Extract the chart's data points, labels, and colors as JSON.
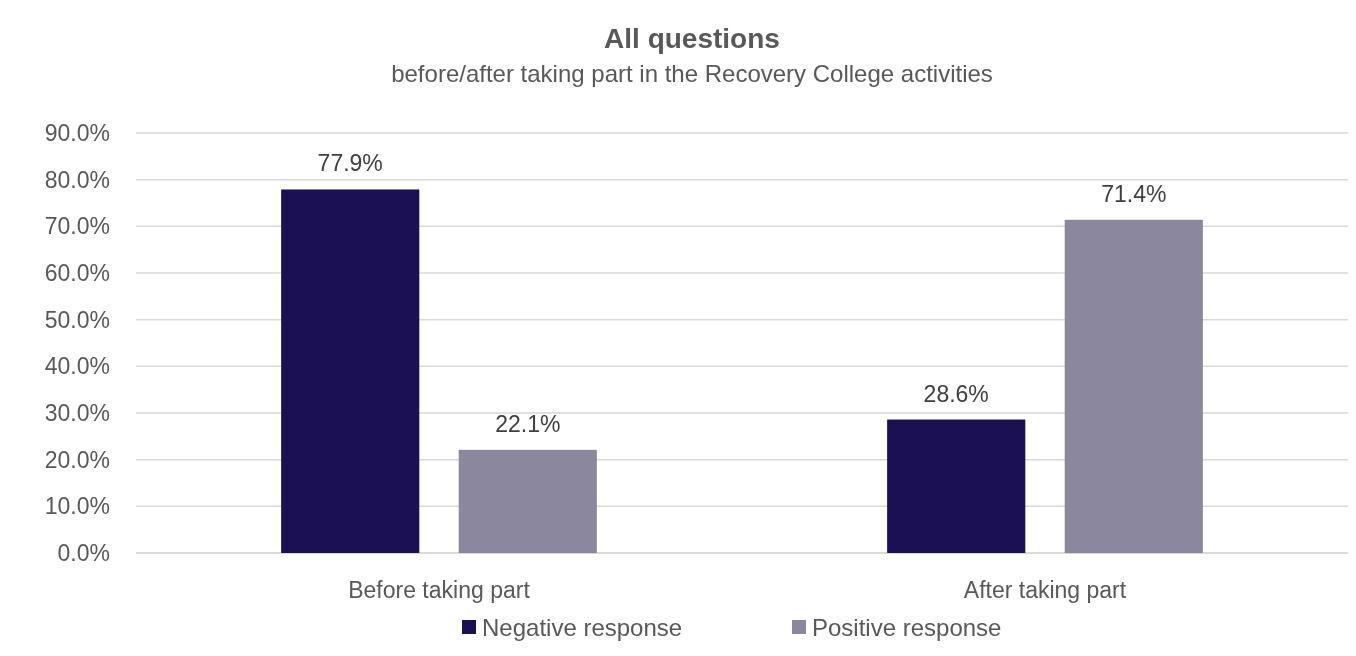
{
  "chart_data": {
    "type": "bar",
    "title": "All questions",
    "subtitle": "before/after taking part in the Recovery College activities",
    "categories": [
      "Before taking part",
      "After taking part"
    ],
    "series": [
      {
        "name": "Negative response",
        "color": "#1a1053",
        "values": [
          77.9,
          28.6
        ],
        "value_labels": [
          "77.9%",
          "28.6%"
        ]
      },
      {
        "name": "Positive response",
        "color": "#8a879e",
        "values": [
          22.1,
          71.4
        ],
        "value_labels": [
          "22.1%",
          "71.4%"
        ]
      }
    ],
    "ylim": [
      0,
      90
    ],
    "yticks": [
      {
        "value": 0,
        "label": "0.0%"
      },
      {
        "value": 10,
        "label": "10.0%"
      },
      {
        "value": 20,
        "label": "20.0%"
      },
      {
        "value": 30,
        "label": "30.0%"
      },
      {
        "value": 40,
        "label": "40.0%"
      },
      {
        "value": 50,
        "label": "50.0%"
      },
      {
        "value": 60,
        "label": "60.0%"
      },
      {
        "value": 70,
        "label": "70.0%"
      },
      {
        "value": 80,
        "label": "80.0%"
      },
      {
        "value": 90,
        "label": "90.0%"
      }
    ],
    "grid": "y",
    "legend": "bottom"
  }
}
